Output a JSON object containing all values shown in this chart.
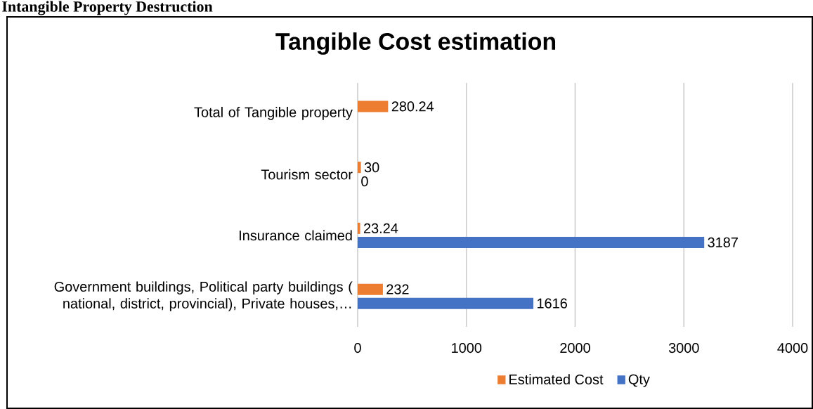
{
  "chart_data": {
    "type": "bar",
    "orientation": "horizontal",
    "title": "Tangible Cost estimation",
    "annotations": [
      "Intangible Property Destruction"
    ],
    "categories": [
      "Total  of Tangible property",
      "Tourism sector",
      "Insurance claimed",
      "Government buildings, Political party buildings ( national, district, provincial), Private houses,…"
    ],
    "series": [
      {
        "name": "Estimated Cost",
        "color": "#ed7d31",
        "values": [
          280.24,
          30,
          23.24,
          232
        ]
      },
      {
        "name": "Qty",
        "color": "#4472c4",
        "values": [
          null,
          0,
          3187,
          1616
        ]
      }
    ],
    "xlim": [
      0,
      4000
    ],
    "xticks": [
      0,
      1000,
      2000,
      3000,
      4000
    ],
    "grid": "x",
    "legend": "bottom",
    "data_labels": true
  }
}
